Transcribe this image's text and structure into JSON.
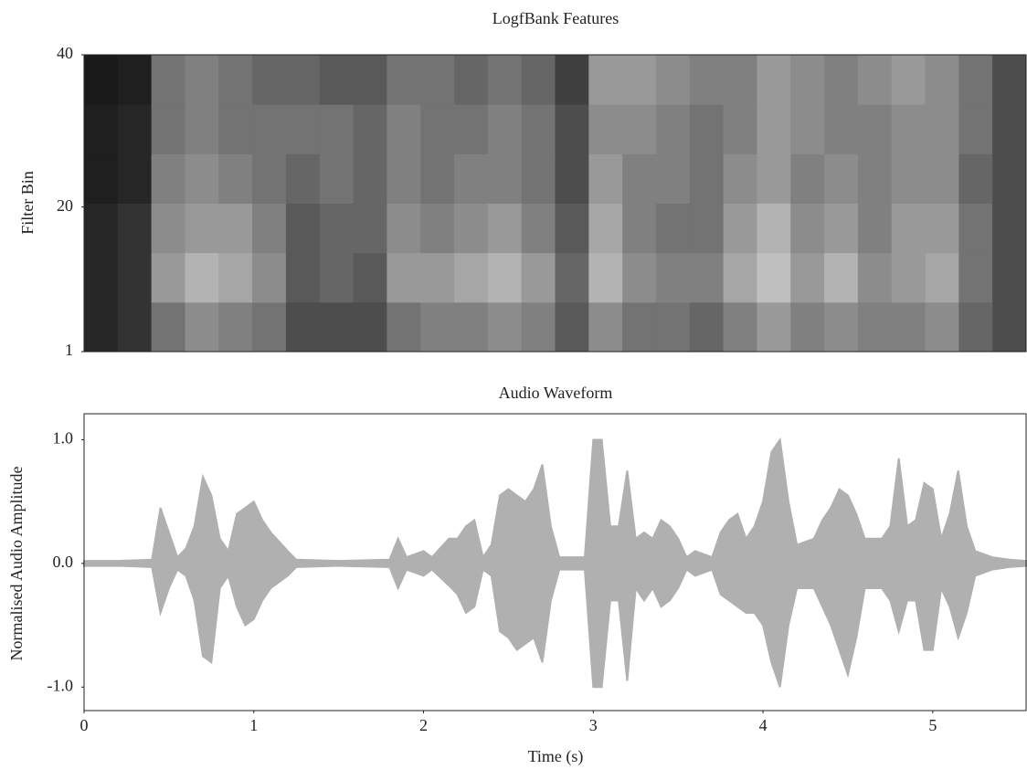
{
  "chart_data": [
    {
      "type": "heatmap",
      "title": "LogfBank Features",
      "ylabel": "Filter Bin",
      "colormap": "gray",
      "xlim": [
        0,
        5.55
      ],
      "ylim": [
        1,
        40
      ],
      "yticks": [
        1,
        20,
        40
      ],
      "zlim": [
        0,
        1
      ],
      "z": [
        [
          0.15,
          0.2,
          0.45,
          0.55,
          0.5,
          0.45,
          0.3,
          0.3,
          0.3,
          0.45,
          0.5,
          0.5,
          0.55,
          0.5,
          0.35,
          0.55,
          0.45,
          0.45,
          0.4,
          0.5,
          0.6,
          0.5,
          0.55,
          0.5,
          0.5,
          0.55,
          0.4,
          0.3
        ],
        [
          0.15,
          0.2,
          0.6,
          0.7,
          0.65,
          0.55,
          0.35,
          0.4,
          0.35,
          0.6,
          0.6,
          0.65,
          0.7,
          0.6,
          0.4,
          0.7,
          0.55,
          0.5,
          0.5,
          0.65,
          0.75,
          0.6,
          0.7,
          0.55,
          0.6,
          0.65,
          0.45,
          0.3
        ],
        [
          0.15,
          0.2,
          0.55,
          0.6,
          0.6,
          0.5,
          0.35,
          0.4,
          0.4,
          0.55,
          0.5,
          0.55,
          0.6,
          0.5,
          0.35,
          0.65,
          0.5,
          0.45,
          0.45,
          0.6,
          0.7,
          0.55,
          0.6,
          0.5,
          0.6,
          0.6,
          0.45,
          0.3
        ],
        [
          0.12,
          0.15,
          0.5,
          0.55,
          0.5,
          0.45,
          0.4,
          0.45,
          0.4,
          0.5,
          0.45,
          0.5,
          0.5,
          0.45,
          0.3,
          0.6,
          0.5,
          0.5,
          0.45,
          0.55,
          0.6,
          0.5,
          0.55,
          0.5,
          0.55,
          0.55,
          0.4,
          0.3
        ],
        [
          0.12,
          0.15,
          0.45,
          0.5,
          0.45,
          0.45,
          0.45,
          0.45,
          0.4,
          0.5,
          0.45,
          0.45,
          0.5,
          0.45,
          0.3,
          0.55,
          0.55,
          0.5,
          0.45,
          0.5,
          0.6,
          0.55,
          0.5,
          0.5,
          0.55,
          0.55,
          0.45,
          0.3
        ],
        [
          0.1,
          0.12,
          0.45,
          0.5,
          0.45,
          0.4,
          0.4,
          0.35,
          0.35,
          0.45,
          0.45,
          0.4,
          0.45,
          0.4,
          0.25,
          0.6,
          0.6,
          0.55,
          0.5,
          0.5,
          0.6,
          0.55,
          0.5,
          0.55,
          0.6,
          0.55,
          0.45,
          0.3
        ]
      ]
    },
    {
      "type": "envelope",
      "title": "Audio Waveform",
      "xlabel": "Time (s)",
      "ylabel": "Normalised Audio Amplitude",
      "color": "#b0b0b0",
      "xlim": [
        0,
        5.55
      ],
      "ylim": [
        -1.19,
        1.21
      ],
      "xticks": [
        0,
        1,
        2,
        3,
        4,
        5
      ],
      "yticks": [
        {
          "value": -1,
          "label": "-1.0"
        },
        {
          "value": 0,
          "label": "0.0"
        },
        {
          "value": 1,
          "label": "1.0"
        }
      ],
      "x": [
        0,
        0.2,
        0.4,
        0.45,
        0.5,
        0.55,
        0.6,
        0.65,
        0.7,
        0.75,
        0.8,
        0.85,
        0.9,
        0.95,
        1.0,
        1.05,
        1.1,
        1.2,
        1.25,
        1.5,
        1.8,
        1.85,
        1.9,
        2.0,
        2.05,
        2.15,
        2.2,
        2.25,
        2.3,
        2.35,
        2.4,
        2.45,
        2.5,
        2.55,
        2.6,
        2.65,
        2.7,
        2.75,
        2.8,
        2.95,
        3.0,
        3.05,
        3.1,
        3.15,
        3.2,
        3.25,
        3.3,
        3.35,
        3.4,
        3.45,
        3.5,
        3.55,
        3.6,
        3.7,
        3.75,
        3.8,
        3.85,
        3.9,
        3.95,
        4.0,
        4.05,
        4.1,
        4.15,
        4.2,
        4.3,
        4.35,
        4.4,
        4.45,
        4.5,
        4.55,
        4.6,
        4.7,
        4.75,
        4.8,
        4.85,
        4.9,
        4.95,
        5.0,
        5.05,
        5.1,
        5.15,
        5.2,
        5.25,
        5.35,
        5.45,
        5.55
      ],
      "upper": [
        0.02,
        0.02,
        0.03,
        0.45,
        0.25,
        0.05,
        0.12,
        0.3,
        0.7,
        0.55,
        0.2,
        0.1,
        0.4,
        0.45,
        0.5,
        0.35,
        0.25,
        0.1,
        0.03,
        0.02,
        0.03,
        0.2,
        0.05,
        0.1,
        0.05,
        0.2,
        0.2,
        0.3,
        0.35,
        0.05,
        0.15,
        0.55,
        0.6,
        0.55,
        0.5,
        0.6,
        0.8,
        0.3,
        0.05,
        0.05,
        1.0,
        1.0,
        0.3,
        0.3,
        0.75,
        0.2,
        0.25,
        0.2,
        0.35,
        0.3,
        0.2,
        0.05,
        0.1,
        0.05,
        0.25,
        0.35,
        0.4,
        0.2,
        0.3,
        0.5,
        0.9,
        1.0,
        0.5,
        0.15,
        0.2,
        0.35,
        0.45,
        0.6,
        0.55,
        0.4,
        0.2,
        0.2,
        0.3,
        0.85,
        0.3,
        0.35,
        0.65,
        0.6,
        0.2,
        0.4,
        0.75,
        0.3,
        0.1,
        0.05,
        0.03,
        0.02
      ],
      "lower": [
        -0.02,
        -0.02,
        -0.03,
        -0.4,
        -0.2,
        -0.05,
        -0.1,
        -0.3,
        -0.75,
        -0.8,
        -0.2,
        -0.1,
        -0.35,
        -0.5,
        -0.45,
        -0.3,
        -0.2,
        -0.1,
        -0.03,
        -0.02,
        -0.03,
        -0.2,
        -0.05,
        -0.1,
        -0.05,
        -0.18,
        -0.25,
        -0.4,
        -0.35,
        -0.05,
        -0.1,
        -0.55,
        -0.6,
        -0.7,
        -0.65,
        -0.6,
        -0.8,
        -0.3,
        -0.05,
        -0.05,
        -1.0,
        -1.0,
        -0.3,
        -0.3,
        -0.95,
        -0.2,
        -0.3,
        -0.2,
        -0.35,
        -0.3,
        -0.2,
        -0.05,
        -0.1,
        -0.05,
        -0.25,
        -0.3,
        -0.35,
        -0.4,
        -0.4,
        -0.5,
        -0.8,
        -1.0,
        -0.5,
        -0.2,
        -0.2,
        -0.35,
        -0.5,
        -0.7,
        -0.9,
        -0.6,
        -0.2,
        -0.2,
        -0.3,
        -0.55,
        -0.3,
        -0.3,
        -0.7,
        -0.7,
        -0.2,
        -0.35,
        -0.6,
        -0.4,
        -0.1,
        -0.05,
        -0.03,
        -0.02
      ]
    }
  ]
}
